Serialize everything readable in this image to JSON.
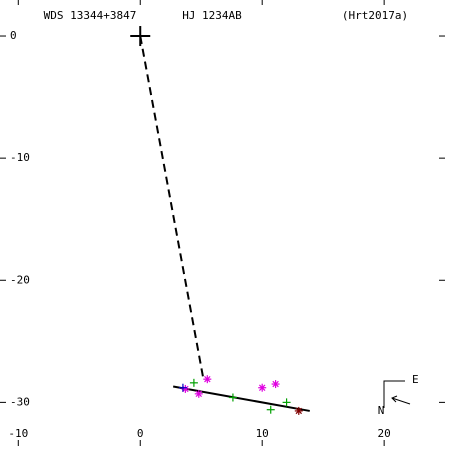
{
  "chart_data": {
    "type": "scatter",
    "title": "WDS 13344+3847",
    "subtitle": "HJ 1234AB",
    "reference": "(Hrt2017a)",
    "compass": {
      "east": "E",
      "north": "N"
    },
    "xlim": [
      -11.5,
      25.4
    ],
    "ylim": [
      -33.9,
      2.95
    ],
    "xticks": [
      -10,
      0,
      10,
      20
    ],
    "yticks": [
      0,
      -10,
      -20,
      -30
    ],
    "primary": {
      "x": 0,
      "y": 0,
      "color": "#000000"
    },
    "lines": [
      {
        "style": "dashed",
        "color": "#000000",
        "x": [
          0,
          5.2
        ],
        "y": [
          0,
          -28.2
        ]
      },
      {
        "style": "solid",
        "color": "#000000",
        "x": [
          2.7,
          13.9
        ],
        "y": [
          -28.7,
          -30.7
        ]
      }
    ],
    "series": [
      {
        "marker": "asterisk",
        "color": "#e000e0",
        "x": [
          5.5,
          4.8,
          10,
          11.1,
          3.7
        ],
        "y": [
          -28.1,
          -29.3,
          -28.8,
          -28.5,
          -28.9
        ]
      },
      {
        "marker": "plus",
        "color": "#00a000",
        "x": [
          4.4,
          12,
          10.7,
          7.6
        ],
        "y": [
          -28.4,
          -30,
          -30.6,
          -29.6
        ]
      },
      {
        "marker": "plus",
        "color": "#0000c0",
        "x": [
          3.5
        ],
        "y": [
          -28.8
        ]
      },
      {
        "marker": "asterisk",
        "color": "#800000",
        "x": [
          13
        ],
        "y": [
          -30.7
        ]
      }
    ]
  }
}
